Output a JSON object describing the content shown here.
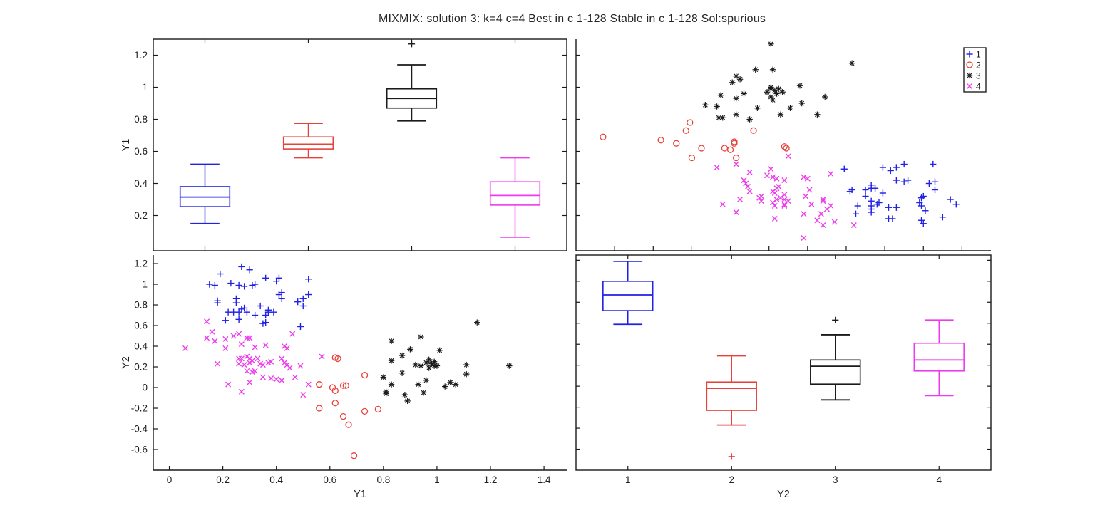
{
  "title": "MIXMIX: solution 3: k=4 c=4 Best in c 1-128 Stable in c 1-128 Sol:spurious",
  "colors": {
    "g1": "#2020e6",
    "g2": "#e8413a",
    "g3": "#1a1a1a",
    "g4": "#ee3bee",
    "axis": "#1a1a1a",
    "tick_label": "#1f1f1f"
  },
  "legend": {
    "position": "top-right-inside",
    "items": [
      {
        "label": "1",
        "marker": "plus",
        "color_key": "g1"
      },
      {
        "label": "2",
        "marker": "circle",
        "color_key": "g2"
      },
      {
        "label": "3",
        "marker": "asterisk",
        "color_key": "g3"
      },
      {
        "label": "4",
        "marker": "cross",
        "color_key": "g4"
      }
    ]
  },
  "scatter_groups": [
    {
      "label": "1",
      "marker": "plus",
      "color_key": "g1",
      "points_y1y2": [
        [
          0.27,
          1.17
        ],
        [
          0.3,
          1.14
        ],
        [
          0.19,
          1.1
        ],
        [
          0.52,
          1.05
        ],
        [
          0.15,
          1.0
        ],
        [
          0.17,
          0.99
        ],
        [
          0.23,
          1.01
        ],
        [
          0.26,
          0.99
        ],
        [
          0.28,
          0.98
        ],
        [
          0.31,
          0.99
        ],
        [
          0.32,
          1.0
        ],
        [
          0.36,
          1.06
        ],
        [
          0.4,
          1.03
        ],
        [
          0.41,
          1.06
        ],
        [
          0.18,
          0.84
        ],
        [
          0.25,
          0.86
        ],
        [
          0.25,
          0.82
        ],
        [
          0.41,
          0.9
        ],
        [
          0.42,
          0.92
        ],
        [
          0.42,
          0.86
        ],
        [
          0.48,
          0.83
        ],
        [
          0.5,
          0.79
        ],
        [
          0.5,
          0.86
        ],
        [
          0.52,
          0.9
        ],
        [
          0.22,
          0.73
        ],
        [
          0.24,
          0.73
        ],
        [
          0.26,
          0.73
        ],
        [
          0.27,
          0.76
        ],
        [
          0.28,
          0.77
        ],
        [
          0.29,
          0.73
        ],
        [
          0.21,
          0.65
        ],
        [
          0.26,
          0.66
        ],
        [
          0.32,
          0.7
        ],
        [
          0.34,
          0.79
        ],
        [
          0.37,
          0.73
        ],
        [
          0.36,
          0.7
        ],
        [
          0.37,
          0.75
        ],
        [
          0.39,
          0.73
        ],
        [
          0.35,
          0.62
        ],
        [
          0.36,
          0.63
        ],
        [
          0.49,
          0.59
        ],
        [
          0.18,
          0.82
        ]
      ]
    },
    {
      "label": "2",
      "marker": "circle",
      "color_key": "g2",
      "points_y1y2": [
        [
          0.62,
          0.29
        ],
        [
          0.63,
          0.28
        ],
        [
          0.56,
          0.03
        ],
        [
          0.61,
          0.0
        ],
        [
          0.62,
          -0.03
        ],
        [
          0.65,
          0.02
        ],
        [
          0.66,
          0.02
        ],
        [
          0.73,
          0.12
        ],
        [
          0.56,
          -0.2
        ],
        [
          0.62,
          -0.15
        ],
        [
          0.65,
          -0.28
        ],
        [
          0.67,
          -0.36
        ],
        [
          0.73,
          -0.23
        ],
        [
          0.78,
          -0.21
        ],
        [
          0.69,
          -0.66
        ]
      ]
    },
    {
      "label": "3",
      "marker": "asterisk",
      "color_key": "g3",
      "points_y1y2": [
        [
          1.15,
          0.63
        ],
        [
          0.83,
          0.45
        ],
        [
          0.94,
          0.49
        ],
        [
          0.9,
          0.37
        ],
        [
          1.01,
          0.36
        ],
        [
          0.83,
          0.26
        ],
        [
          0.87,
          0.31
        ],
        [
          0.92,
          0.22
        ],
        [
          0.94,
          0.21
        ],
        [
          0.96,
          0.24
        ],
        [
          0.97,
          0.27
        ],
        [
          0.98,
          0.23
        ],
        [
          0.99,
          0.21
        ],
        [
          1.0,
          0.21
        ],
        [
          1.11,
          0.22
        ],
        [
          1.11,
          0.13
        ],
        [
          1.27,
          0.21
        ],
        [
          0.8,
          0.1
        ],
        [
          0.87,
          0.14
        ],
        [
          0.83,
          0.03
        ],
        [
          0.93,
          0.03
        ],
        [
          0.96,
          0.07
        ],
        [
          1.03,
          0.01
        ],
        [
          1.05,
          0.05
        ],
        [
          1.07,
          0.03
        ],
        [
          0.81,
          -0.06
        ],
        [
          0.88,
          -0.07
        ],
        [
          0.89,
          -0.13
        ],
        [
          0.95,
          -0.05
        ],
        [
          0.81,
          -0.04
        ],
        [
          0.97,
          0.19
        ],
        [
          0.99,
          0.25
        ]
      ]
    },
    {
      "label": "4",
      "marker": "cross",
      "color_key": "g4",
      "points_y1y2": [
        [
          0.14,
          0.64
        ],
        [
          0.16,
          0.54
        ],
        [
          0.14,
          0.48
        ],
        [
          0.06,
          0.38
        ],
        [
          0.17,
          0.45
        ],
        [
          0.21,
          0.47
        ],
        [
          0.24,
          0.5
        ],
        [
          0.26,
          0.52
        ],
        [
          0.29,
          0.48
        ],
        [
          0.3,
          0.48
        ],
        [
          0.27,
          0.42
        ],
        [
          0.21,
          0.38
        ],
        [
          0.32,
          0.39
        ],
        [
          0.36,
          0.41
        ],
        [
          0.43,
          0.4
        ],
        [
          0.44,
          0.38
        ],
        [
          0.46,
          0.52
        ],
        [
          0.18,
          0.23
        ],
        [
          0.26,
          0.28
        ],
        [
          0.27,
          0.28
        ],
        [
          0.29,
          0.3
        ],
        [
          0.3,
          0.28
        ],
        [
          0.31,
          0.26
        ],
        [
          0.26,
          0.23
        ],
        [
          0.28,
          0.22
        ],
        [
          0.3,
          0.24
        ],
        [
          0.33,
          0.28
        ],
        [
          0.34,
          0.23
        ],
        [
          0.35,
          0.22
        ],
        [
          0.37,
          0.24
        ],
        [
          0.38,
          0.25
        ],
        [
          0.42,
          0.28
        ],
        [
          0.43,
          0.24
        ],
        [
          0.44,
          0.22
        ],
        [
          0.45,
          0.19
        ],
        [
          0.49,
          0.21
        ],
        [
          0.29,
          0.16
        ],
        [
          0.31,
          0.15
        ],
        [
          0.32,
          0.16
        ],
        [
          0.35,
          0.1
        ],
        [
          0.38,
          0.09
        ],
        [
          0.4,
          0.08
        ],
        [
          0.42,
          0.07
        ],
        [
          0.47,
          0.1
        ],
        [
          0.22,
          0.03
        ],
        [
          0.27,
          -0.04
        ],
        [
          0.3,
          0.05
        ],
        [
          0.5,
          -0.07
        ],
        [
          0.52,
          0.03
        ],
        [
          0.57,
          0.3
        ]
      ]
    }
  ],
  "chart_data": [
    {
      "id": "boxplot-y1",
      "type": "box",
      "position": "top-left",
      "ylabel": "Y1",
      "xlabel": "",
      "xlim": [
        0.5,
        4.5
      ],
      "ylim": [
        -0.02,
        1.3
      ],
      "xticks": [
        1,
        2,
        3,
        4
      ],
      "xtick_labels": null,
      "yticks": [
        0.2,
        0.4,
        0.6,
        0.8,
        1.0,
        1.2
      ],
      "ytick_labels": [
        "0.2",
        "0.4",
        "0.6",
        "0.8",
        "1",
        "1.2"
      ],
      "box_frame": true,
      "grid": false,
      "boxes": [
        {
          "group": "1",
          "x": 1,
          "color_key": "g1",
          "whisker_low": 0.15,
          "q1": 0.255,
          "median": 0.315,
          "q3": 0.38,
          "whisker_high": 0.52,
          "outliers": []
        },
        {
          "group": "2",
          "x": 2,
          "color_key": "g2",
          "whisker_low": 0.56,
          "q1": 0.615,
          "median": 0.645,
          "q3": 0.69,
          "whisker_high": 0.775,
          "outliers": []
        },
        {
          "group": "3",
          "x": 3,
          "color_key": "g3",
          "whisker_low": 0.79,
          "q1": 0.87,
          "median": 0.93,
          "q3": 0.99,
          "whisker_high": 1.14,
          "outliers": [
            1.27
          ]
        },
        {
          "group": "4",
          "x": 4,
          "color_key": "g4",
          "whisker_low": 0.065,
          "q1": 0.265,
          "median": 0.325,
          "q3": 0.41,
          "whisker_high": 0.56,
          "outliers": []
        }
      ]
    },
    {
      "id": "scatter-y1-vs-y2",
      "type": "scatter",
      "position": "top-right",
      "x_var": "Y2",
      "y_var": "Y1",
      "xlabel": "",
      "ylabel": "",
      "xlim": [
        -0.8,
        1.35
      ],
      "ylim": [
        -0.02,
        1.3
      ],
      "xticks": [
        -0.6,
        -0.4,
        -0.2,
        0,
        0.2,
        0.4,
        0.6,
        0.8,
        1.0,
        1.2
      ],
      "xtick_labels": null,
      "yticks": [
        0.2,
        0.4,
        0.6,
        0.8,
        1.0,
        1.2
      ],
      "ytick_labels": null,
      "box_frame": false,
      "grid": false,
      "orientation": "swap",
      "legend": true
    },
    {
      "id": "scatter-y2-vs-y1",
      "type": "scatter",
      "position": "bottom-left",
      "x_var": "Y1",
      "y_var": "Y2",
      "xlabel": "Y1",
      "ylabel": "Y2",
      "xlim": [
        -0.06,
        1.485
      ],
      "ylim": [
        -0.8,
        1.283
      ],
      "xticks": [
        0,
        0.2,
        0.4,
        0.6,
        0.8,
        1.0,
        1.2,
        1.4
      ],
      "xtick_labels": [
        "0",
        "0.2",
        "0.4",
        "0.6",
        "0.8",
        "1",
        "1.2",
        "1.4"
      ],
      "yticks": [
        -0.6,
        -0.4,
        -0.2,
        0,
        0.2,
        0.4,
        0.6,
        0.8,
        1.0,
        1.2
      ],
      "ytick_labels": [
        "-0.6",
        "-0.4",
        "-0.2",
        "0",
        "0.2",
        "0.4",
        "0.6",
        "0.8",
        "1",
        "1.2"
      ],
      "box_frame": false,
      "grid": false,
      "orientation": "direct",
      "legend": false
    },
    {
      "id": "boxplot-y2",
      "type": "box",
      "position": "bottom-right",
      "ylabel": "",
      "xlabel": "Y2",
      "xlim": [
        0.5,
        4.5
      ],
      "ylim": [
        -0.8,
        1.25
      ],
      "xticks": [
        1,
        2,
        3,
        4
      ],
      "xtick_labels": [
        "1",
        "2",
        "3",
        "4"
      ],
      "yticks": [
        -0.6,
        -0.4,
        -0.2,
        0,
        0.2,
        0.4,
        0.6,
        0.8,
        1.0,
        1.2
      ],
      "ytick_labels": null,
      "box_frame": true,
      "grid": false,
      "boxes": [
        {
          "group": "1",
          "x": 1,
          "color_key": "g1",
          "whisker_low": 0.59,
          "q1": 0.72,
          "median": 0.87,
          "q3": 1.0,
          "whisker_high": 1.19,
          "outliers": []
        },
        {
          "group": "2",
          "x": 2,
          "color_key": "g2",
          "whisker_low": -0.37,
          "q1": -0.23,
          "median": -0.02,
          "q3": 0.04,
          "whisker_high": 0.29,
          "outliers": [
            -0.67
          ]
        },
        {
          "group": "3",
          "x": 3,
          "color_key": "g3",
          "whisker_low": -0.13,
          "q1": 0.02,
          "median": 0.19,
          "q3": 0.25,
          "whisker_high": 0.49,
          "outliers": [
            0.63
          ]
        },
        {
          "group": "4",
          "x": 4,
          "color_key": "g4",
          "whisker_low": -0.09,
          "q1": 0.145,
          "median": 0.25,
          "q3": 0.41,
          "whisker_high": 0.63,
          "outliers": []
        }
      ]
    }
  ]
}
